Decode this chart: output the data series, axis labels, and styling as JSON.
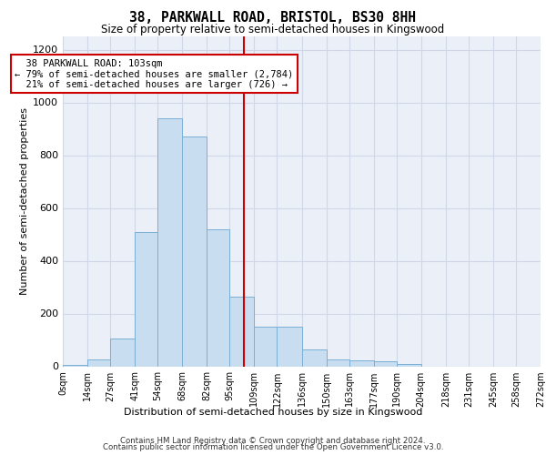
{
  "title1": "38, PARKWALL ROAD, BRISTOL, BS30 8HH",
  "title2": "Size of property relative to semi-detached houses in Kingswood",
  "xlabel": "Distribution of semi-detached houses by size in Kingswood",
  "ylabel": "Number of semi-detached properties",
  "property_size": 103,
  "property_label": "38 PARKWALL ROAD: 103sqm",
  "pct_smaller": 79,
  "n_smaller": 2784,
  "pct_larger": 21,
  "n_larger": 726,
  "bin_edges": [
    0,
    14,
    27,
    41,
    54,
    68,
    82,
    95,
    109,
    122,
    136,
    150,
    163,
    177,
    190,
    204,
    218,
    231,
    245,
    258,
    272
  ],
  "bin_counts": [
    5,
    25,
    105,
    510,
    940,
    870,
    520,
    265,
    150,
    150,
    65,
    25,
    22,
    18,
    10,
    0,
    0,
    0,
    0,
    0
  ],
  "bar_facecolor": "#c9ddf0",
  "bar_edgecolor": "#7aafd4",
  "vline_color": "#cc0000",
  "vline_x": 103,
  "annotation_box_color": "#cc0000",
  "grid_color": "#d0d8e8",
  "background_color": "#eaeff8",
  "ylim": [
    0,
    1250
  ],
  "yticks": [
    0,
    200,
    400,
    600,
    800,
    1000,
    1200
  ],
  "footer1": "Contains HM Land Registry data © Crown copyright and database right 2024.",
  "footer2": "Contains public sector information licensed under the Open Government Licence v3.0."
}
